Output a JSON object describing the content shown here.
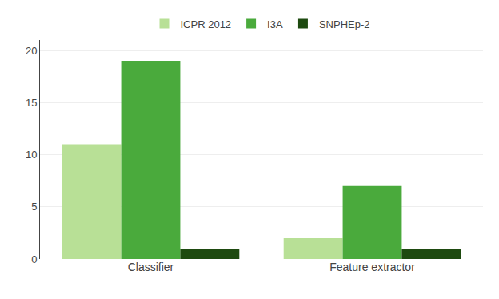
{
  "chart_data": {
    "type": "bar",
    "categories": [
      "Classifier",
      "Feature extractor"
    ],
    "series": [
      {
        "name": "ICPR 2012",
        "color": "#b8e096",
        "values": [
          11,
          2
        ]
      },
      {
        "name": "I3A",
        "color": "#4aaa3c",
        "values": [
          19,
          7
        ]
      },
      {
        "name": "SNPHEp-2",
        "color": "#1e4a10",
        "values": [
          1,
          1
        ]
      }
    ],
    "ylim": [
      0,
      21
    ],
    "yticks": [
      0,
      5,
      10,
      15,
      20
    ],
    "grid": true,
    "legend": "top"
  }
}
